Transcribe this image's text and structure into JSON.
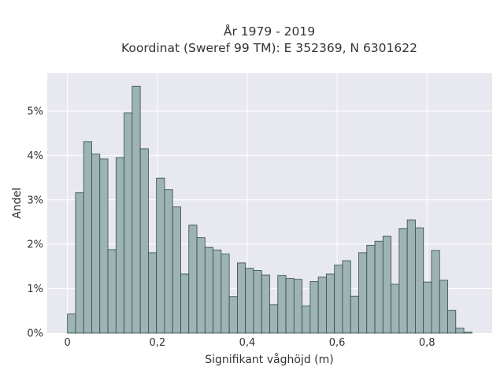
{
  "chart_data": {
    "type": "bar",
    "title": "År 1979 - 2019",
    "subtitle": "Koordinat (Sweref 99 TM): E 352369, N 6301622",
    "xlabel": "Signifikant våghöjd (m)",
    "ylabel": "Andel",
    "x_ticks": [
      "0",
      "0,2",
      "0,4",
      "0,6",
      "0,8"
    ],
    "y_ticks": [
      "0%",
      "1%",
      "2%",
      "3%",
      "4%",
      "5%"
    ],
    "xlim": [
      -0.045,
      0.945
    ],
    "ylim": [
      0,
      5.85
    ],
    "bin_width": 0.018,
    "bin_centers": [
      0.009,
      0.027,
      0.045,
      0.063,
      0.081,
      0.099,
      0.117,
      0.135,
      0.153,
      0.171,
      0.189,
      0.207,
      0.225,
      0.243,
      0.261,
      0.279,
      0.297,
      0.315,
      0.333,
      0.351,
      0.369,
      0.387,
      0.405,
      0.423,
      0.441,
      0.459,
      0.477,
      0.495,
      0.513,
      0.531,
      0.549,
      0.567,
      0.585,
      0.603,
      0.621,
      0.639,
      0.657,
      0.675,
      0.693,
      0.711,
      0.729,
      0.747,
      0.765,
      0.783,
      0.801,
      0.819,
      0.837,
      0.855,
      0.873,
      0.891
    ],
    "values": [
      0.43,
      3.16,
      4.31,
      4.03,
      3.92,
      1.88,
      3.95,
      4.96,
      5.56,
      4.15,
      1.81,
      3.49,
      3.23,
      2.84,
      1.33,
      2.43,
      2.15,
      1.93,
      1.87,
      1.78,
      0.82,
      1.58,
      1.46,
      1.41,
      1.31,
      0.64,
      1.3,
      1.23,
      1.21,
      0.61,
      1.16,
      1.26,
      1.33,
      1.53,
      1.63,
      0.83,
      1.81,
      1.98,
      2.07,
      2.18,
      1.1,
      2.35,
      2.55,
      2.37,
      1.15,
      1.86,
      1.19,
      0.51,
      0.11,
      0.02
    ],
    "grid": true,
    "legend": "none",
    "colors": {
      "bar_fill": "#9db3b4",
      "bar_stroke": "#2f4a4b",
      "plot_background": "#e8e8f0",
      "grid": "#ffffff"
    }
  }
}
